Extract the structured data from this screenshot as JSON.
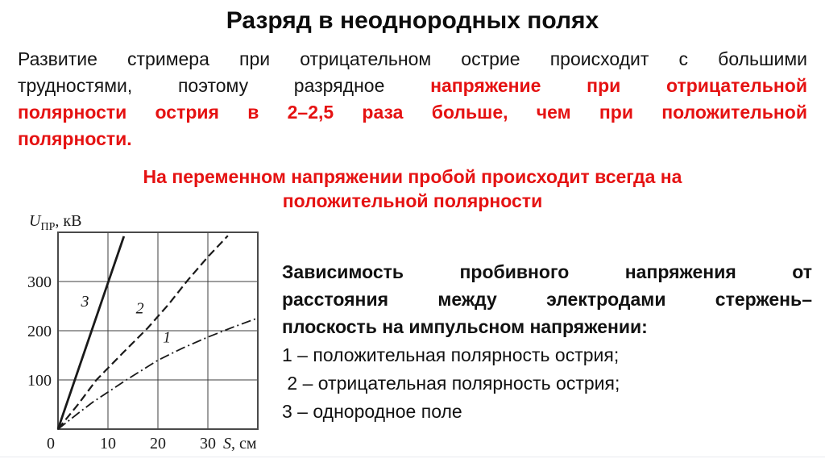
{
  "slide": {
    "title": "Разряд в неоднородных полях",
    "intro_lines": [
      {
        "justify": true,
        "segments": [
          {
            "color": "black",
            "text": "Развитие стримера при отрицательном острие происходит с большими"
          }
        ]
      },
      {
        "justify": true,
        "segments": [
          {
            "color": "black",
            "text": "трудностями, поэтому разрядное"
          },
          {
            "color": "red",
            "text": "напряжение при отрицательной"
          }
        ]
      },
      {
        "justify": true,
        "segments": [
          {
            "color": "red",
            "text": "полярности острия  в 2–2,5 раза больше, чем при положительной"
          }
        ]
      },
      {
        "justify": false,
        "segments": [
          {
            "color": "red",
            "text": "полярности."
          }
        ]
      }
    ],
    "highlight_lines": [
      "На переменном напряжении пробой происходит всегда на",
      "положительной полярности"
    ],
    "caption": {
      "lead_lines": [
        {
          "justify": true,
          "text": "Зависимость пробивного напряжения от"
        },
        {
          "justify": true,
          "text": "расстояния между электродами стержень–"
        },
        {
          "justify": false,
          "text": "плоскость на импульсном напряжении:"
        }
      ],
      "items": [
        "1 – положительная полярность острия;",
        " 2 – отрицательная полярность острия;",
        "3 – однородное поле"
      ]
    },
    "colors": {
      "accent_red": "#e51212",
      "text": "#141414",
      "chart_ink": "#1a1a1a"
    }
  },
  "chart_data": {
    "type": "line",
    "title": "",
    "xlabel": "S, см",
    "ylabel": "Uпр, кВ",
    "xlabel_parts": {
      "var": "S",
      "unit": ", см"
    },
    "ylabel_parts": {
      "var": "U",
      "sub": "ПР",
      "unit": ", кВ"
    },
    "xlim": [
      0,
      40
    ],
    "ylim": [
      0,
      400
    ],
    "x_ticks": [
      0,
      10,
      20,
      30
    ],
    "y_ticks": [
      100,
      200,
      300
    ],
    "grid": true,
    "legend_position": "none",
    "series": [
      {
        "name": "1",
        "meaning": "положительная полярность острия",
        "style": "dashdot",
        "points": [
          [
            0,
            0
          ],
          [
            4,
            32
          ],
          [
            7,
            55
          ],
          [
            13.7,
            100
          ],
          [
            20,
            140
          ],
          [
            25,
            165
          ],
          [
            30,
            187
          ],
          [
            35,
            207
          ],
          [
            39.5,
            224
          ]
        ],
        "label_pos": [
          21.8,
          176
        ]
      },
      {
        "name": "2",
        "meaning": "отрицательная полярность острия",
        "style": "dashed",
        "points": [
          [
            0,
            0
          ],
          [
            4,
            50
          ],
          [
            7.7,
            100
          ],
          [
            13,
            155
          ],
          [
            17.9,
            205
          ],
          [
            22,
            252
          ],
          [
            26,
            303
          ],
          [
            30,
            350
          ],
          [
            34,
            393
          ]
        ],
        "label_pos": [
          16.4,
          235
        ]
      },
      {
        "name": "3",
        "meaning": "однородное поле",
        "style": "solid",
        "points": [
          [
            0,
            0
          ],
          [
            13.2,
            392
          ]
        ],
        "label_pos": [
          5.4,
          249
        ]
      }
    ]
  }
}
